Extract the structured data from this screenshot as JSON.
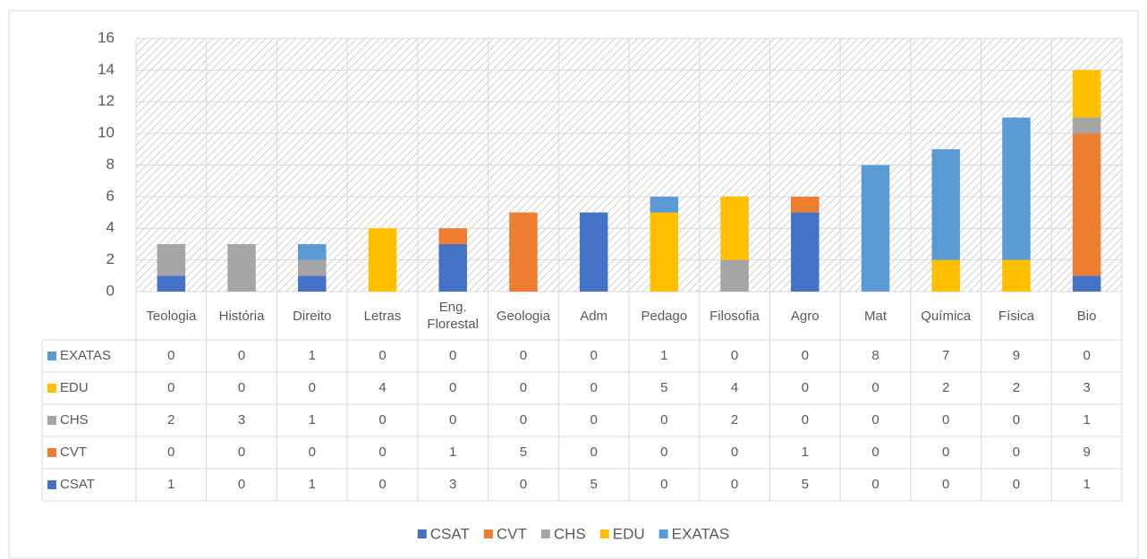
{
  "chart_data": {
    "type": "stacked_bar",
    "categories": [
      "Teologia",
      "História",
      "Direito",
      "Letras",
      "Eng. Florestal",
      "Geologia",
      "Adm",
      "Pedago",
      "Filosofia",
      "Agro",
      "Mat",
      "Química",
      "Física",
      "Bio"
    ],
    "series": [
      {
        "name": "CSAT",
        "color": "#4472c4",
        "values": [
          1,
          0,
          1,
          0,
          3,
          0,
          5,
          0,
          0,
          5,
          0,
          0,
          0,
          1
        ]
      },
      {
        "name": "CVT",
        "color": "#ed7d31",
        "values": [
          0,
          0,
          0,
          0,
          1,
          5,
          0,
          0,
          0,
          1,
          0,
          0,
          0,
          9
        ]
      },
      {
        "name": "CHS",
        "color": "#a5a5a5",
        "values": [
          2,
          3,
          1,
          0,
          0,
          0,
          0,
          0,
          2,
          0,
          0,
          0,
          0,
          1
        ]
      },
      {
        "name": "EDU",
        "color": "#ffc000",
        "values": [
          0,
          0,
          0,
          4,
          0,
          0,
          0,
          5,
          4,
          0,
          0,
          2,
          2,
          3
        ]
      },
      {
        "name": "EXATAS",
        "color": "#5b9bd5",
        "values": [
          0,
          0,
          1,
          0,
          0,
          0,
          0,
          1,
          0,
          0,
          8,
          7,
          9,
          0
        ]
      }
    ],
    "ylim": [
      0,
      16
    ],
    "yticks": [
      0,
      2,
      4,
      6,
      8,
      10,
      12,
      14,
      16
    ],
    "grid": true,
    "legend": "bottom",
    "data_table": true
  }
}
